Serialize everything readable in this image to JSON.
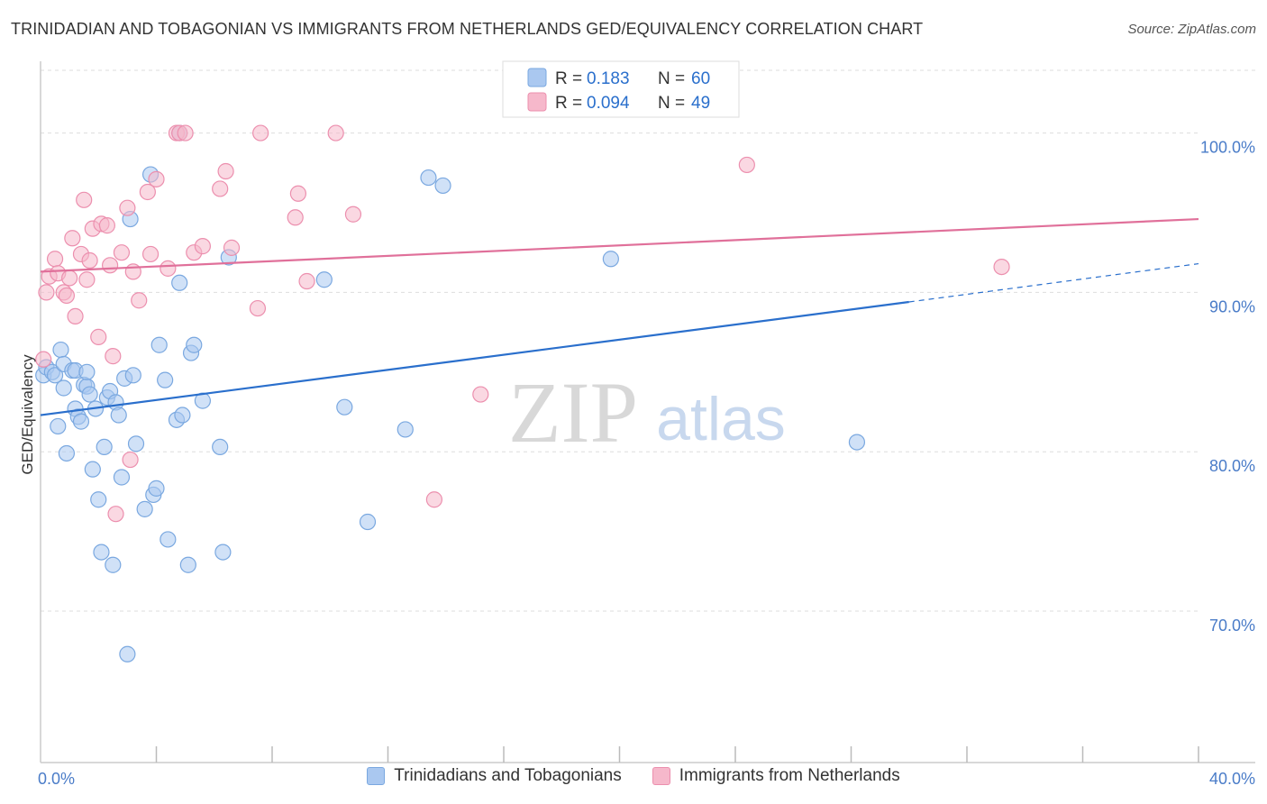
{
  "header": {
    "title": "TRINIDADIAN AND TOBAGONIAN VS IMMIGRANTS FROM NETHERLANDS GED/EQUIVALENCY CORRELATION CHART",
    "source": "Source: ZipAtlas.com"
  },
  "colors": {
    "blue_fill": "#aac8f0",
    "blue_stroke": "#7aa8e0",
    "blue_line": "#2a6fcc",
    "pink_fill": "#f6b8cb",
    "pink_stroke": "#ec8fae",
    "pink_line": "#e0709a",
    "axis_text": "#4a7cc8",
    "grid": "#dddddd"
  },
  "legend": {
    "r_label": "R =",
    "n_label": "N =",
    "series": [
      {
        "r": "0.183",
        "n": "60"
      },
      {
        "r": "0.094",
        "n": "49"
      }
    ]
  },
  "watermark": {
    "zip": "ZIP",
    "atlas": "atlas"
  },
  "chart_data": {
    "type": "scatter",
    "ylabel": "GED/Equivalency",
    "xlim": [
      0,
      40
    ],
    "ylim": [
      60.5,
      104.5
    ],
    "x_ticks": [
      {
        "value": 0,
        "label": "0.0%"
      },
      {
        "value": 40,
        "label": "40.0%"
      }
    ],
    "y_ticks": [
      {
        "value": 100,
        "label": "100.0%"
      },
      {
        "value": 90,
        "label": "90.0%"
      },
      {
        "value": 80,
        "label": "80.0%"
      },
      {
        "value": 70,
        "label": "70.0%"
      }
    ],
    "grid": true,
    "legend_position": "top-center",
    "series": [
      {
        "name": "Trinidadians and Tobagonians",
        "color": "blue",
        "trend": {
          "x0": 0,
          "y0": 82.3,
          "x1": 30,
          "y1": 89.4,
          "dash_to_x": 40,
          "dash_to_y": 91.8
        },
        "points": [
          [
            0.1,
            84.8
          ],
          [
            0.2,
            85.3
          ],
          [
            0.4,
            85.0
          ],
          [
            0.5,
            84.8
          ],
          [
            0.6,
            81.6
          ],
          [
            0.7,
            86.4
          ],
          [
            0.8,
            85.5
          ],
          [
            0.8,
            84.0
          ],
          [
            0.9,
            79.9
          ],
          [
            1.1,
            85.1
          ],
          [
            1.2,
            85.1
          ],
          [
            1.2,
            82.7
          ],
          [
            1.3,
            82.2
          ],
          [
            1.4,
            81.9
          ],
          [
            1.5,
            84.2
          ],
          [
            1.6,
            84.1
          ],
          [
            1.6,
            85.0
          ],
          [
            1.7,
            83.6
          ],
          [
            1.8,
            78.9
          ],
          [
            1.9,
            82.7
          ],
          [
            2.0,
            77.0
          ],
          [
            2.1,
            73.7
          ],
          [
            2.2,
            80.3
          ],
          [
            2.3,
            83.4
          ],
          [
            2.4,
            83.8
          ],
          [
            2.5,
            72.9
          ],
          [
            2.6,
            83.1
          ],
          [
            2.7,
            82.3
          ],
          [
            2.8,
            78.4
          ],
          [
            2.9,
            84.6
          ],
          [
            3.0,
            67.3
          ],
          [
            3.1,
            94.6
          ],
          [
            3.2,
            84.8
          ],
          [
            3.3,
            80.5
          ],
          [
            3.6,
            76.4
          ],
          [
            3.8,
            97.4
          ],
          [
            3.9,
            77.3
          ],
          [
            4.0,
            77.7
          ],
          [
            4.1,
            86.7
          ],
          [
            4.3,
            84.5
          ],
          [
            4.4,
            74.5
          ],
          [
            4.7,
            82.0
          ],
          [
            4.8,
            90.6
          ],
          [
            4.9,
            82.3
          ],
          [
            5.1,
            72.9
          ],
          [
            5.2,
            86.2
          ],
          [
            5.3,
            86.7
          ],
          [
            5.6,
            83.2
          ],
          [
            6.2,
            80.3
          ],
          [
            6.3,
            73.7
          ],
          [
            6.5,
            92.2
          ],
          [
            9.8,
            90.8
          ],
          [
            10.5,
            82.8
          ],
          [
            11.3,
            75.6
          ],
          [
            12.6,
            81.4
          ],
          [
            13.4,
            97.2
          ],
          [
            13.9,
            96.7
          ],
          [
            19.7,
            92.1
          ],
          [
            28.2,
            80.6
          ],
          [
            4.8,
            100.0
          ]
        ]
      },
      {
        "name": "Immigrants from Netherlands",
        "color": "pink",
        "trend": {
          "x0": 0,
          "y0": 91.3,
          "x1": 40,
          "y1": 94.6
        },
        "points": [
          [
            0.1,
            85.8
          ],
          [
            0.2,
            90.0
          ],
          [
            0.3,
            91.0
          ],
          [
            0.5,
            92.1
          ],
          [
            0.6,
            91.2
          ],
          [
            0.8,
            90.0
          ],
          [
            0.9,
            89.8
          ],
          [
            1.0,
            90.9
          ],
          [
            1.1,
            93.4
          ],
          [
            1.2,
            88.5
          ],
          [
            1.4,
            92.4
          ],
          [
            1.5,
            95.8
          ],
          [
            1.6,
            90.8
          ],
          [
            1.7,
            92.0
          ],
          [
            1.8,
            94.0
          ],
          [
            2.0,
            87.2
          ],
          [
            2.1,
            94.3
          ],
          [
            2.3,
            94.2
          ],
          [
            2.4,
            91.7
          ],
          [
            2.5,
            86.0
          ],
          [
            2.6,
            76.1
          ],
          [
            2.8,
            92.5
          ],
          [
            3.0,
            95.3
          ],
          [
            3.1,
            79.5
          ],
          [
            3.2,
            91.3
          ],
          [
            3.4,
            89.5
          ],
          [
            3.7,
            96.3
          ],
          [
            3.8,
            92.4
          ],
          [
            4.0,
            97.1
          ],
          [
            4.4,
            91.5
          ],
          [
            4.7,
            100.0
          ],
          [
            4.8,
            100.0
          ],
          [
            5.0,
            100.0
          ],
          [
            5.3,
            92.5
          ],
          [
            5.6,
            92.9
          ],
          [
            6.2,
            96.5
          ],
          [
            6.4,
            97.6
          ],
          [
            6.6,
            92.8
          ],
          [
            7.5,
            89.0
          ],
          [
            7.6,
            100.0
          ],
          [
            8.8,
            94.7
          ],
          [
            8.9,
            96.2
          ],
          [
            9.2,
            90.7
          ],
          [
            10.2,
            100.0
          ],
          [
            10.8,
            94.9
          ],
          [
            13.6,
            77.0
          ],
          [
            15.2,
            83.6
          ],
          [
            24.4,
            98.0
          ],
          [
            33.2,
            91.6
          ]
        ]
      }
    ]
  }
}
